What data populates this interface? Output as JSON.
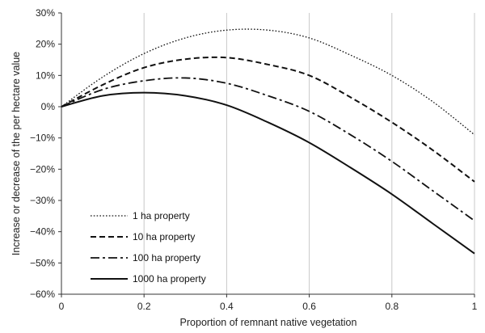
{
  "chart_data": {
    "type": "line",
    "title": "",
    "xlabel": "Proportion of remnant native vegetation",
    "ylabel": "Increase or decrease of the per hectare value",
    "xlim": [
      0,
      1
    ],
    "ylim": [
      -60,
      30
    ],
    "x_ticks": [
      0,
      0.2,
      0.4,
      0.6,
      0.8,
      1
    ],
    "x_tick_labels": [
      "0",
      "0.2",
      "0.4",
      "0.6",
      "0.8",
      "1"
    ],
    "y_ticks": [
      30,
      20,
      10,
      0,
      -10,
      -20,
      -30,
      -40,
      -50,
      -60
    ],
    "y_tick_labels": [
      "30%",
      "20%",
      "10%",
      "0%",
      "−10%",
      "−20%",
      "−30%",
      "−40%",
      "−50%",
      "−60%"
    ],
    "grid": "vertical",
    "legend_position": "bottom-left",
    "x": [
      0,
      0.1,
      0.2,
      0.3,
      0.4,
      0.5,
      0.6,
      0.7,
      0.8,
      0.9,
      1.0
    ],
    "series": [
      {
        "name": "1 ha property",
        "style": "dotted",
        "values": [
          0,
          9.5,
          17,
          22,
          24.5,
          24.5,
          22,
          16.5,
          10,
          1.5,
          -9
        ]
      },
      {
        "name": "10 ha property",
        "style": "dashed",
        "values": [
          0,
          7,
          12.5,
          15.2,
          15.7,
          13.5,
          10,
          3,
          -5,
          -14,
          -24
        ]
      },
      {
        "name": "100 ha property",
        "style": "dashdot",
        "values": [
          0,
          5.5,
          8.3,
          9.2,
          7.5,
          3.5,
          -1.5,
          -9,
          -17.5,
          -27,
          -36.5
        ]
      },
      {
        "name": "1000 ha property",
        "style": "solid",
        "values": [
          0,
          3.5,
          4.5,
          3.5,
          0.5,
          -5,
          -11.5,
          -19.5,
          -28,
          -37.5,
          -47
        ]
      }
    ]
  }
}
